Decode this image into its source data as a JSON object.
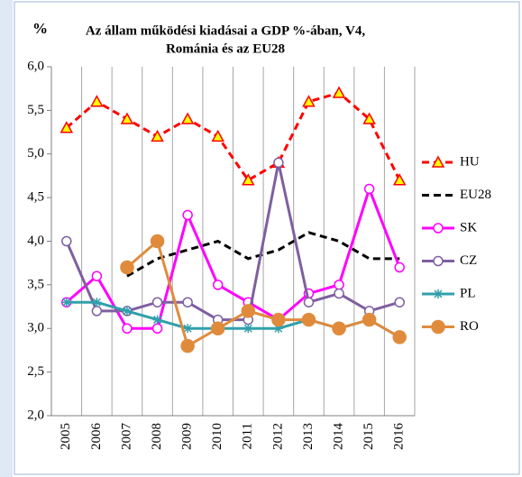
{
  "chart_data": {
    "type": "line",
    "title": [
      "Az állam működési kiadásai a  GDP %-ában, V4,",
      "Románia és az EU28"
    ],
    "ylabel": "%",
    "categories": [
      "2005",
      "2006",
      "2007",
      "2008",
      "2009",
      "2010",
      "2011",
      "2012",
      "2013",
      "2014",
      "2015",
      "2016"
    ],
    "ylim": [
      2,
      6
    ],
    "yticks": [
      {
        "value": 2,
        "label": "2,0"
      },
      {
        "value": 2.5,
        "label": "2,5"
      },
      {
        "value": 3,
        "label": "3,0"
      },
      {
        "value": 3.5,
        "label": "3,5"
      },
      {
        "value": 4,
        "label": "4,0"
      },
      {
        "value": 4.5,
        "label": "4,5"
      },
      {
        "value": 5,
        "label": "5,0"
      },
      {
        "value": 5.5,
        "label": "5,5"
      },
      {
        "value": 6,
        "label": "6,0"
      }
    ],
    "legend": "right",
    "series": [
      {
        "name": "HU",
        "color": "#ff0000",
        "dash": true,
        "marker": "triangle",
        "marker_fill": "#ffff00",
        "values": [
          5.3,
          5.6,
          5.4,
          5.2,
          5.4,
          5.2,
          4.7,
          4.9,
          5.6,
          5.7,
          5.4,
          4.7
        ]
      },
      {
        "name": "EU28",
        "color": "#000000",
        "dash": true,
        "marker": "none",
        "values": [
          null,
          null,
          3.6,
          3.8,
          3.9,
          4.0,
          3.8,
          3.9,
          4.1,
          4.0,
          3.8,
          3.8
        ]
      },
      {
        "name": "SK",
        "color": "#ff00ff",
        "dash": false,
        "marker": "circle",
        "marker_fill": "#ffffff",
        "values": [
          3.3,
          3.6,
          3.0,
          3.0,
          4.3,
          3.5,
          3.3,
          3.1,
          3.4,
          3.5,
          4.6,
          3.7
        ]
      },
      {
        "name": "CZ",
        "color": "#7f5fa0",
        "dash": false,
        "marker": "circle",
        "marker_fill": "#ffffff",
        "values": [
          4.0,
          3.2,
          3.2,
          3.3,
          3.3,
          3.1,
          3.1,
          4.9,
          3.3,
          3.4,
          3.2,
          3.3
        ]
      },
      {
        "name": "PL",
        "color": "#31a0ac",
        "dash": false,
        "marker": "star",
        "marker_fill": "#31a0ac",
        "values": [
          3.3,
          3.3,
          3.2,
          3.1,
          3.0,
          3.0,
          3.0,
          3.0,
          3.1,
          3.0,
          3.1,
          2.9
        ]
      },
      {
        "name": "RO",
        "color": "#e08b3c",
        "dash": false,
        "marker": "bigcircle",
        "marker_fill": "#e08b3c",
        "values": [
          null,
          null,
          3.7,
          4.0,
          2.8,
          3.0,
          3.2,
          3.1,
          3.1,
          3.0,
          3.1,
          2.9
        ]
      }
    ]
  }
}
